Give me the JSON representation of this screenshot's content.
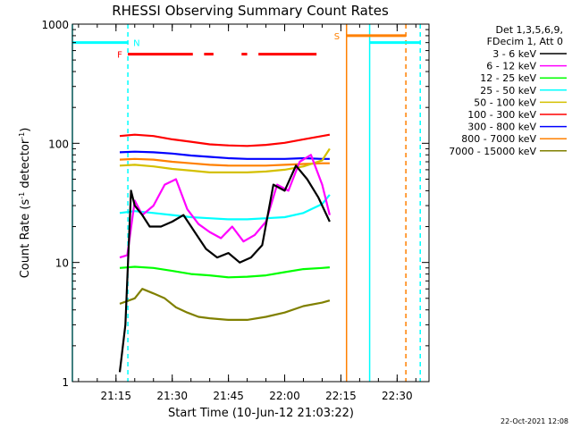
{
  "chart_data": {
    "type": "line",
    "title": "RHESSI Observing Summary Count Rates",
    "xlabel": "Start Time (10-Jun-12 21:03:22)",
    "ylabel_main": "Count Rate (s",
    "ylabel_sup1": "-1",
    "ylabel_mid": " detector",
    "ylabel_sup2": "-1",
    "ylabel_end": ")",
    "y_scale": "log",
    "ylim": [
      1,
      1000
    ],
    "xlim": [
      "21:03:22",
      "22:38:30"
    ],
    "x_ticks": [
      "21:15",
      "21:30",
      "21:45",
      "22:00",
      "22:15",
      "22:30"
    ],
    "y_ticks": [
      "1",
      "10",
      "100",
      "1000"
    ],
    "legend_header": [
      "Det 1,3,5,6,9,",
      "FDecim 1, Att 0"
    ],
    "legend_placement": "right",
    "timestamp": "22-Oct-2021 12:08",
    "flags": {
      "N": {
        "label": "N",
        "color": "#00ffff",
        "start": "21:03:22",
        "end": "21:18:10",
        "level": 700
      },
      "N2": {
        "color": "#00ffff",
        "start": "22:22:40",
        "end": "22:36:10",
        "level": 700
      },
      "S": {
        "label": "S",
        "color": "#ff8000",
        "start": "22:16:30",
        "end": "22:32:20",
        "level": 800
      },
      "F": {
        "label": "F",
        "color": "#ff0000",
        "level": 560,
        "segments": [
          [
            "21:18:10",
            "21:35:30"
          ],
          [
            "21:38:30",
            "21:41:00"
          ],
          [
            "21:48:30",
            "21:50:00"
          ],
          [
            "21:53:00",
            "22:08:30"
          ]
        ]
      }
    },
    "vlines": [
      {
        "time": "21:03:22",
        "color": "#00ffff",
        "style": "solid"
      },
      {
        "time": "21:18:10",
        "color": "#00ffff",
        "style": "dashed"
      },
      {
        "time": "22:16:30",
        "color": "#ff8000",
        "style": "solid"
      },
      {
        "time": "22:22:40",
        "color": "#00ffff",
        "style": "solid"
      },
      {
        "time": "22:32:20",
        "color": "#ff8000",
        "style": "dashed"
      },
      {
        "time": "22:36:10",
        "color": "#00ffff",
        "style": "dashed"
      }
    ],
    "series": [
      {
        "name": "3 - 6 keV",
        "color": "#000000",
        "x": [
          "21:16:00",
          "21:17:30",
          "21:19:00",
          "21:20:00",
          "21:22:00",
          "21:24:00",
          "21:27:00",
          "21:30:00",
          "21:33:00",
          "21:36:00",
          "21:39:00",
          "21:42:00",
          "21:45:00",
          "21:48:00",
          "21:51:00",
          "21:54:00",
          "21:57:00",
          "22:00:00",
          "22:03:00",
          "22:06:00",
          "22:09:00",
          "22:12:00"
        ],
        "y": [
          1.2,
          3,
          40,
          30,
          25,
          20,
          20,
          22,
          25,
          18,
          13,
          11,
          12,
          10,
          11,
          14,
          45,
          40,
          65,
          50,
          35,
          22
        ]
      },
      {
        "name": "6 - 12 keV",
        "color": "#ff00ff",
        "x": [
          "21:16:00",
          "21:18:00",
          "21:20:00",
          "21:22:00",
          "21:25:00",
          "21:28:00",
          "21:31:00",
          "21:34:00",
          "21:37:00",
          "21:40:00",
          "21:43:00",
          "21:46:00",
          "21:49:00",
          "21:52:00",
          "21:55:00",
          "21:58:00",
          "22:01:00",
          "22:04:00",
          "22:07:00",
          "22:10:00",
          "22:12:00"
        ],
        "y": [
          11,
          11.5,
          33,
          25,
          30,
          45,
          50,
          28,
          21,
          18,
          16,
          20,
          15,
          17,
          22,
          45,
          40,
          70,
          80,
          45,
          25
        ]
      },
      {
        "name": "12 - 25 keV",
        "color": "#00ff00",
        "x": [
          "21:16:00",
          "21:20:00",
          "21:25:00",
          "21:30:00",
          "21:35:00",
          "21:40:00",
          "21:45:00",
          "21:50:00",
          "21:55:00",
          "22:00:00",
          "22:05:00",
          "22:10:00",
          "22:12:00"
        ],
        "y": [
          9.0,
          9.2,
          9.0,
          8.5,
          8.0,
          7.8,
          7.5,
          7.6,
          7.8,
          8.3,
          8.8,
          9.0,
          9.1
        ]
      },
      {
        "name": "25 - 50 keV",
        "color": "#00ffff",
        "x": [
          "21:16:00",
          "21:20:00",
          "21:25:00",
          "21:30:00",
          "21:35:00",
          "21:40:00",
          "21:45:00",
          "21:50:00",
          "21:55:00",
          "22:00:00",
          "22:05:00",
          "22:10:00",
          "22:12:00"
        ],
        "y": [
          26,
          27,
          26,
          25,
          24,
          23.5,
          23,
          23,
          23.5,
          24,
          26,
          31,
          37
        ]
      },
      {
        "name": "50 - 100 keV",
        "color": "#d4c000",
        "x": [
          "21:16:00",
          "21:20:00",
          "21:25:00",
          "21:30:00",
          "21:35:00",
          "21:40:00",
          "21:45:00",
          "21:50:00",
          "21:55:00",
          "22:00:00",
          "22:05:00",
          "22:10:00",
          "22:12:00"
        ],
        "y": [
          65,
          66,
          64,
          61,
          59,
          57,
          57,
          57,
          58,
          60,
          64,
          72,
          90
        ]
      },
      {
        "name": "100 - 300 keV",
        "color": "#ff0000",
        "x": [
          "21:16:00",
          "21:20:00",
          "21:25:00",
          "21:30:00",
          "21:35:00",
          "21:40:00",
          "21:45:00",
          "21:50:00",
          "21:55:00",
          "22:00:00",
          "22:05:00",
          "22:10:00",
          "22:12:00"
        ],
        "y": [
          115,
          118,
          115,
          108,
          103,
          98,
          96,
          95,
          97,
          101,
          108,
          115,
          118
        ]
      },
      {
        "name": "300 - 800 keV",
        "color": "#0000ff",
        "x": [
          "21:16:00",
          "21:20:00",
          "21:25:00",
          "21:30:00",
          "21:35:00",
          "21:40:00",
          "21:45:00",
          "21:50:00",
          "21:55:00",
          "22:00:00",
          "22:05:00",
          "22:10:00",
          "22:12:00"
        ],
        "y": [
          84,
          85,
          84,
          82,
          79,
          77,
          75,
          74,
          74,
          74,
          75,
          74,
          74
        ]
      },
      {
        "name": "800 - 7000 keV",
        "color": "#ff8000",
        "x": [
          "21:16:00",
          "21:20:00",
          "21:25:00",
          "21:30:00",
          "21:35:00",
          "21:40:00",
          "21:45:00",
          "21:50:00",
          "21:55:00",
          "22:00:00",
          "22:05:00",
          "22:10:00",
          "22:12:00"
        ],
        "y": [
          73,
          74,
          73,
          70,
          68,
          66,
          65,
          65,
          65,
          66,
          67,
          68,
          68
        ]
      },
      {
        "name": "7000 - 15000 keV",
        "color": "#808000",
        "x": [
          "21:16:00",
          "21:20:00",
          "21:22:00",
          "21:25:00",
          "21:28:00",
          "21:31:00",
          "21:34:00",
          "21:37:00",
          "21:40:00",
          "21:45:00",
          "21:50:00",
          "21:55:00",
          "22:00:00",
          "22:05:00",
          "22:10:00",
          "22:12:00"
        ],
        "y": [
          4.5,
          5.0,
          6.0,
          5.5,
          5.0,
          4.2,
          3.8,
          3.5,
          3.4,
          3.3,
          3.3,
          3.5,
          3.8,
          4.3,
          4.6,
          4.8
        ]
      }
    ]
  }
}
